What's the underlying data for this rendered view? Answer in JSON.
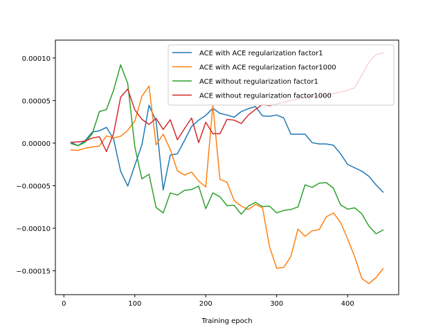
{
  "chart_data": {
    "type": "line",
    "title": "",
    "xlabel": "Training epoch",
    "ylabel": "",
    "xlim": [
      -12,
      472
    ],
    "ylim": [
      -0.000178,
      0.000121
    ],
    "xticks": [
      0,
      100,
      200,
      300,
      400
    ],
    "xtick_labels": [
      "0",
      "100",
      "200",
      "300",
      "400"
    ],
    "yticks": [
      -0.00015,
      -0.0001,
      -5e-05,
      0.0,
      5e-05,
      0.0001
    ],
    "ytick_labels": [
      "−0.00015",
      "−0.00010",
      "−0.00005",
      "0.00000",
      "0.00005",
      "0.00010"
    ],
    "grid": false,
    "legend_position": "top-right",
    "x": [
      10,
      20,
      30,
      40,
      50,
      60,
      70,
      80,
      90,
      100,
      110,
      120,
      130,
      140,
      150,
      160,
      170,
      180,
      190,
      200,
      210,
      220,
      230,
      240,
      250,
      260,
      270,
      280,
      290,
      300,
      310,
      320,
      330,
      340,
      350,
      360,
      370,
      380,
      390,
      400,
      410,
      420,
      430,
      440,
      450
    ],
    "series": [
      {
        "name": "ACE with ACE regularization factor1",
        "color": "#1f77b4",
        "values": [
          1e-06,
          -3e-06,
          3e-06,
          1.3e-05,
          1.45e-05,
          1.85e-05,
          5e-06,
          -3.3e-05,
          -5.05e-05,
          -2.6e-05,
          -2e-06,
          4.45e-05,
          2.6e-05,
          -5.5e-05,
          -1.4e-05,
          -1.25e-05,
          3e-06,
          1.95e-05,
          2.7e-05,
          3.25e-05,
          4.1e-05,
          3.5e-05,
          3.3e-05,
          3.05e-05,
          3.7e-05,
          4.05e-05,
          4.3e-05,
          3.2e-05,
          3.15e-05,
          3.3e-05,
          2.95e-05,
          1.05e-05,
          1.05e-05,
          1.05e-05,
          5e-07,
          -1e-06,
          -1e-06,
          -2.5e-06,
          -1.25e-05,
          -2.5e-05,
          -2.9e-05,
          -3.3e-05,
          -3.9e-05,
          -4.9e-05,
          -5.75e-05
        ]
      },
      {
        "name": "ACE with ACE regularization factor1000",
        "color": "#ff7f0e",
        "values": [
          -8e-06,
          -8.5e-06,
          -6e-06,
          -4.5e-06,
          -3.5e-06,
          8.5e-06,
          6e-06,
          8e-06,
          1.5e-05,
          2.6e-05,
          5.5e-05,
          6.7e-05,
          -2e-06,
          1.05e-05,
          -7.5e-06,
          -3.25e-05,
          -3.75e-05,
          -3.4e-05,
          -4.45e-05,
          -5.15e-05,
          4.5e-05,
          -4.25e-05,
          -4.6e-05,
          -6.75e-05,
          -7.4e-05,
          -7.8e-05,
          -7.2e-05,
          -7.6e-05,
          -0.000122,
          -0.000147,
          -0.000146,
          -0.000133,
          -0.000101,
          -0.0001095,
          -0.000103,
          -0.0001015,
          -8.65e-05,
          -8.2e-05,
          -9.3e-05,
          -0.0001125,
          -0.0001335,
          -0.000159,
          -0.000165,
          -0.000158,
          -0.0001475
        ]
      },
      {
        "name": "ACE without regularization factor1",
        "color": "#2ca02c",
        "values": [
          -5e-07,
          -3e-06,
          1e-06,
          1.1e-05,
          3.7e-05,
          3.95e-05,
          6.2e-05,
          9.2e-05,
          7e-05,
          -4.5e-06,
          -4.2e-05,
          -3.65e-05,
          -7.55e-05,
          -8.2e-05,
          -5.85e-05,
          -6.1e-05,
          -5.55e-05,
          -5.45e-05,
          -5.05e-05,
          -7.7e-05,
          -5.85e-05,
          -6.3e-05,
          -7.35e-05,
          -7.3e-05,
          -8.35e-05,
          -7.4e-05,
          -6.95e-05,
          -7.45e-05,
          -7.4e-05,
          -8.2e-05,
          -7.9e-05,
          -7.8e-05,
          -7.5e-05,
          -4.9e-05,
          -5.2e-05,
          -4.7e-05,
          -4.65e-05,
          -5.3e-05,
          -7.25e-05,
          -7.75e-05,
          -7.6e-05,
          -8.3e-05,
          -9.75e-05,
          -0.0001065,
          -0.000102
        ]
      },
      {
        "name": "ACE without regularization factor1000",
        "color": "#d62728",
        "values": [
          1e-06,
          1.5e-06,
          2.5e-06,
          6e-06,
          7.5e-06,
          -1e-05,
          1.1e-05,
          5.4e-05,
          6.35e-05,
          3.9e-05,
          2.8e-05,
          2.2e-05,
          2.9e-05,
          1.6e-05,
          2.75e-05,
          4e-06,
          1.7e-05,
          2.95e-05,
          5e-07,
          2.45e-05,
          1.1e-05,
          1.1e-05,
          2.8e-05,
          2.7e-05,
          2.3e-05,
          3.3e-05,
          3.95e-05,
          4.55e-05,
          4.4e-05,
          4.6e-05,
          4.8e-05,
          5e-05,
          5.2e-05,
          5.4e-05,
          5.5e-05,
          5.55e-05,
          5.6e-05,
          5.8e-05,
          6e-05,
          6.2e-05,
          6.5e-05,
          8e-05,
          9.5e-05,
          0.000104,
          0.000106
        ]
      }
    ]
  }
}
